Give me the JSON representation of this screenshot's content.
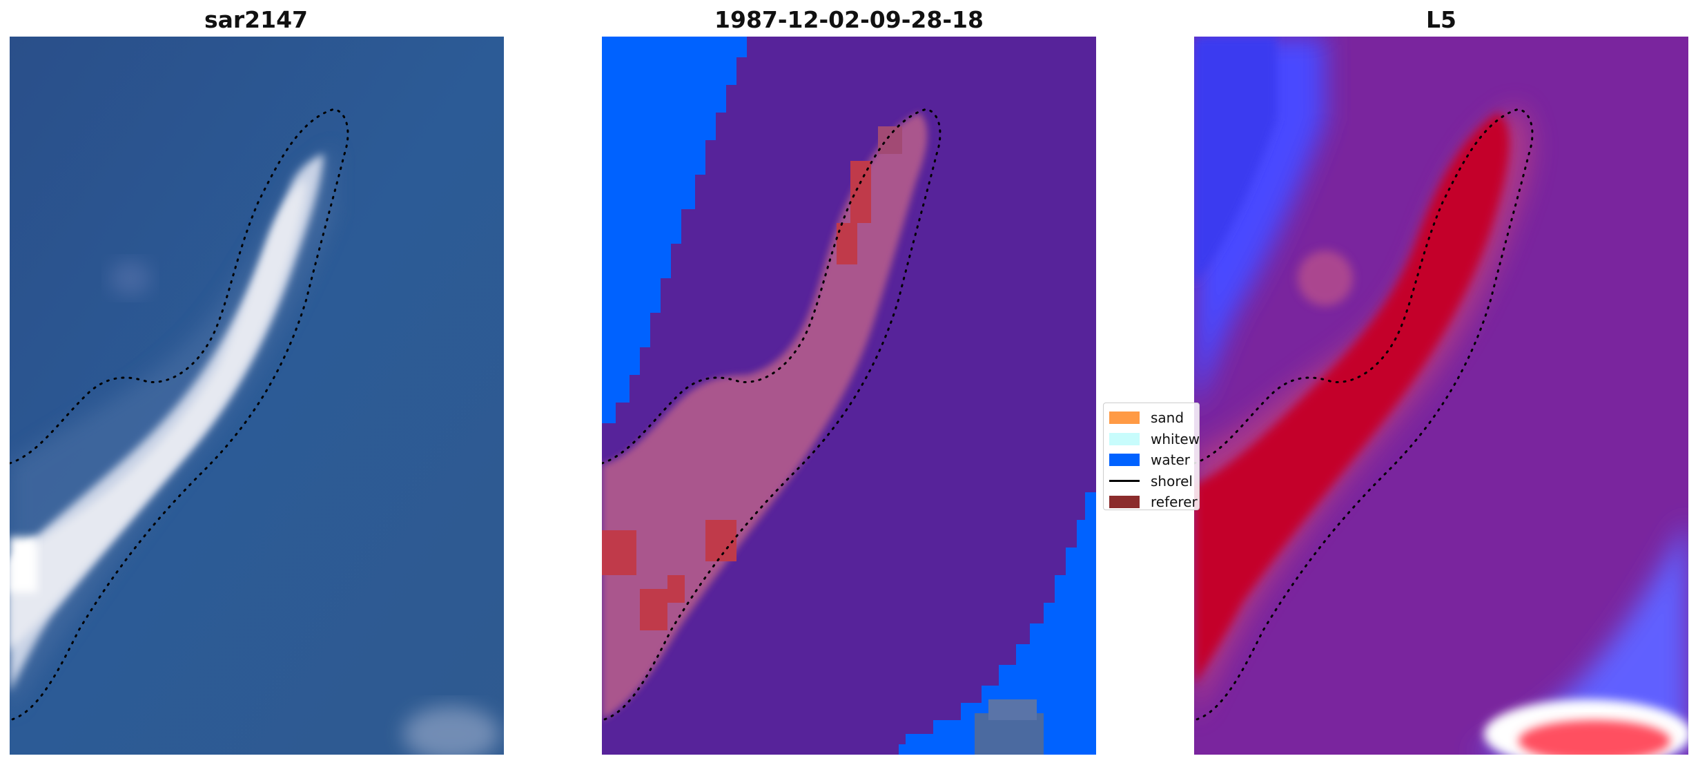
{
  "panels": [
    {
      "title": "sar2147"
    },
    {
      "title": "1987-12-02-09-28-18"
    },
    {
      "title": "L5"
    }
  ],
  "legend": {
    "items": [
      {
        "label": "sand",
        "color": "#ff9a45",
        "kind": "patch"
      },
      {
        "label": "whitew",
        "color": "#c8fcfc",
        "kind": "patch"
      },
      {
        "label": "water",
        "color": "#0062ff",
        "kind": "patch"
      },
      {
        "label": "shorel",
        "color": "#000000",
        "kind": "line"
      },
      {
        "label": "referer",
        "color": "#8b2c2c",
        "kind": "patch"
      }
    ]
  },
  "colors": {
    "rgb_water": "#2b5591",
    "rgb_sand": "#e4e6ee",
    "class_water": "#0062ff",
    "class_other": "#57239a",
    "class_sand_prob": "#b45c8c",
    "class_reference": "#c03a4a",
    "prob_water": "#6a3fd8",
    "prob_low": "#4848ff",
    "prob_high": "#c4002c",
    "prob_mid": "#7a259e"
  }
}
